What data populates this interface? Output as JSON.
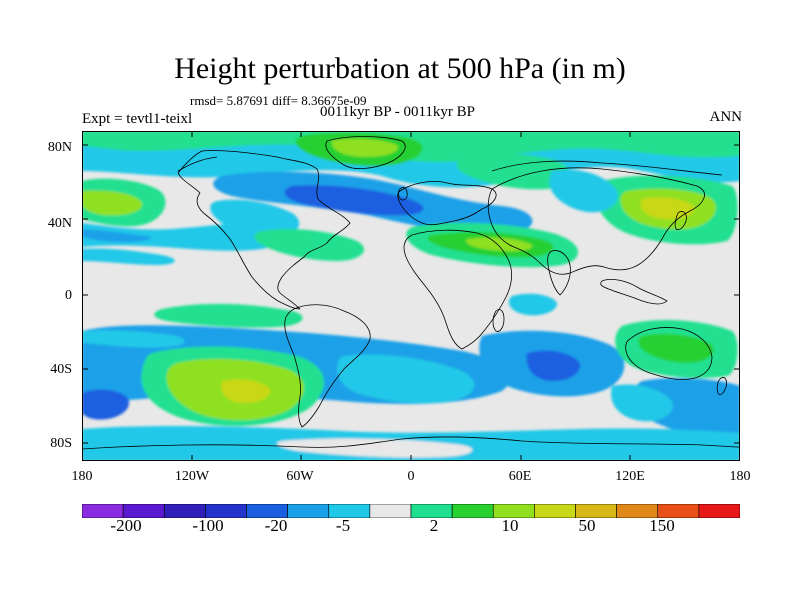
{
  "title": "Height perturbation at 500 hPa (in m)",
  "stats": "rmsd= 5.87691 diff= 8.36675e-09",
  "experiment": "Expt = tevtl1-teixl",
  "period": "0011kyr BP - 0011kyr BP",
  "season": "ANN",
  "lat_ticks": [
    "80N",
    "40N",
    "0",
    "40S",
    "80S"
  ],
  "lon_ticks": [
    "180",
    "120W",
    "60W",
    "0",
    "60E",
    "120E",
    "180"
  ],
  "colorbar": {
    "colors": [
      "#8a2be2",
      "#5a18d0",
      "#2f1fb8",
      "#2433cc",
      "#1a5fe0",
      "#1aa0e8",
      "#20c8e8",
      "#e8e8e8",
      "#20e090",
      "#28d030",
      "#90e020",
      "#c8d818",
      "#d8b818",
      "#e08818",
      "#e85018",
      "#e81818"
    ],
    "labels": [
      "-200",
      "-100",
      "-20",
      "-5",
      "2",
      "10",
      "50",
      "150"
    ]
  },
  "field_colors": {
    "background": "#e8e8e8",
    "blue_light": "#20c8e8",
    "blue_mid": "#1aa0e8",
    "blue_dark": "#1a5fe0",
    "green": "#20e090",
    "green_mid": "#28d030",
    "yellow_green": "#90e020",
    "yellow": "#c8d818"
  },
  "coastline_color": "#000000"
}
